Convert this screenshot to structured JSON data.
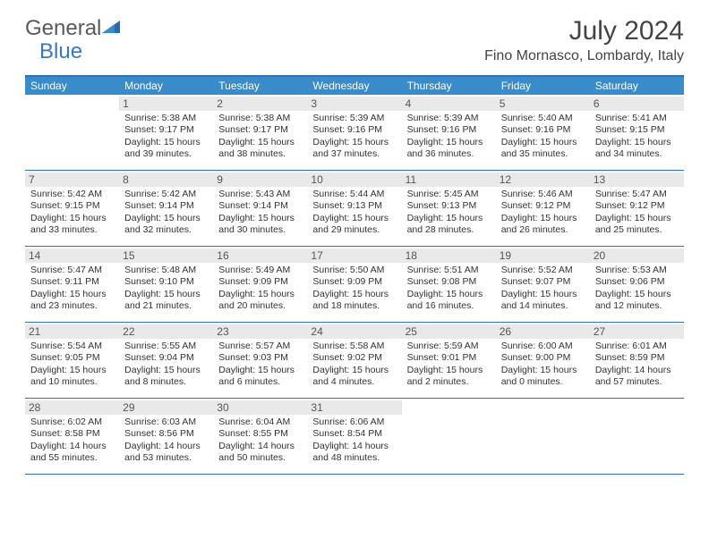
{
  "logo": {
    "text1": "General",
    "text2": "Blue"
  },
  "title": "July 2024",
  "location": "Fino Mornasco, Lombardy, Italy",
  "colors": {
    "header_bg": "#3a8bc9",
    "border": "#2f73b5",
    "datenum_bg": "#e9e9e9",
    "logo_blue": "#3a79b7"
  },
  "dayNames": [
    "Sunday",
    "Monday",
    "Tuesday",
    "Wednesday",
    "Thursday",
    "Friday",
    "Saturday"
  ],
  "weeks": [
    [
      null,
      {
        "n": "1",
        "sr": "Sunrise: 5:38 AM",
        "ss": "Sunset: 9:17 PM",
        "d1": "Daylight: 15 hours",
        "d2": "and 39 minutes."
      },
      {
        "n": "2",
        "sr": "Sunrise: 5:38 AM",
        "ss": "Sunset: 9:17 PM",
        "d1": "Daylight: 15 hours",
        "d2": "and 38 minutes."
      },
      {
        "n": "3",
        "sr": "Sunrise: 5:39 AM",
        "ss": "Sunset: 9:16 PM",
        "d1": "Daylight: 15 hours",
        "d2": "and 37 minutes."
      },
      {
        "n": "4",
        "sr": "Sunrise: 5:39 AM",
        "ss": "Sunset: 9:16 PM",
        "d1": "Daylight: 15 hours",
        "d2": "and 36 minutes."
      },
      {
        "n": "5",
        "sr": "Sunrise: 5:40 AM",
        "ss": "Sunset: 9:16 PM",
        "d1": "Daylight: 15 hours",
        "d2": "and 35 minutes."
      },
      {
        "n": "6",
        "sr": "Sunrise: 5:41 AM",
        "ss": "Sunset: 9:15 PM",
        "d1": "Daylight: 15 hours",
        "d2": "and 34 minutes."
      }
    ],
    [
      {
        "n": "7",
        "sr": "Sunrise: 5:42 AM",
        "ss": "Sunset: 9:15 PM",
        "d1": "Daylight: 15 hours",
        "d2": "and 33 minutes."
      },
      {
        "n": "8",
        "sr": "Sunrise: 5:42 AM",
        "ss": "Sunset: 9:14 PM",
        "d1": "Daylight: 15 hours",
        "d2": "and 32 minutes."
      },
      {
        "n": "9",
        "sr": "Sunrise: 5:43 AM",
        "ss": "Sunset: 9:14 PM",
        "d1": "Daylight: 15 hours",
        "d2": "and 30 minutes."
      },
      {
        "n": "10",
        "sr": "Sunrise: 5:44 AM",
        "ss": "Sunset: 9:13 PM",
        "d1": "Daylight: 15 hours",
        "d2": "and 29 minutes."
      },
      {
        "n": "11",
        "sr": "Sunrise: 5:45 AM",
        "ss": "Sunset: 9:13 PM",
        "d1": "Daylight: 15 hours",
        "d2": "and 28 minutes."
      },
      {
        "n": "12",
        "sr": "Sunrise: 5:46 AM",
        "ss": "Sunset: 9:12 PM",
        "d1": "Daylight: 15 hours",
        "d2": "and 26 minutes."
      },
      {
        "n": "13",
        "sr": "Sunrise: 5:47 AM",
        "ss": "Sunset: 9:12 PM",
        "d1": "Daylight: 15 hours",
        "d2": "and 25 minutes."
      }
    ],
    [
      {
        "n": "14",
        "sr": "Sunrise: 5:47 AM",
        "ss": "Sunset: 9:11 PM",
        "d1": "Daylight: 15 hours",
        "d2": "and 23 minutes."
      },
      {
        "n": "15",
        "sr": "Sunrise: 5:48 AM",
        "ss": "Sunset: 9:10 PM",
        "d1": "Daylight: 15 hours",
        "d2": "and 21 minutes."
      },
      {
        "n": "16",
        "sr": "Sunrise: 5:49 AM",
        "ss": "Sunset: 9:09 PM",
        "d1": "Daylight: 15 hours",
        "d2": "and 20 minutes."
      },
      {
        "n": "17",
        "sr": "Sunrise: 5:50 AM",
        "ss": "Sunset: 9:09 PM",
        "d1": "Daylight: 15 hours",
        "d2": "and 18 minutes."
      },
      {
        "n": "18",
        "sr": "Sunrise: 5:51 AM",
        "ss": "Sunset: 9:08 PM",
        "d1": "Daylight: 15 hours",
        "d2": "and 16 minutes."
      },
      {
        "n": "19",
        "sr": "Sunrise: 5:52 AM",
        "ss": "Sunset: 9:07 PM",
        "d1": "Daylight: 15 hours",
        "d2": "and 14 minutes."
      },
      {
        "n": "20",
        "sr": "Sunrise: 5:53 AM",
        "ss": "Sunset: 9:06 PM",
        "d1": "Daylight: 15 hours",
        "d2": "and 12 minutes."
      }
    ],
    [
      {
        "n": "21",
        "sr": "Sunrise: 5:54 AM",
        "ss": "Sunset: 9:05 PM",
        "d1": "Daylight: 15 hours",
        "d2": "and 10 minutes."
      },
      {
        "n": "22",
        "sr": "Sunrise: 5:55 AM",
        "ss": "Sunset: 9:04 PM",
        "d1": "Daylight: 15 hours",
        "d2": "and 8 minutes."
      },
      {
        "n": "23",
        "sr": "Sunrise: 5:57 AM",
        "ss": "Sunset: 9:03 PM",
        "d1": "Daylight: 15 hours",
        "d2": "and 6 minutes."
      },
      {
        "n": "24",
        "sr": "Sunrise: 5:58 AM",
        "ss": "Sunset: 9:02 PM",
        "d1": "Daylight: 15 hours",
        "d2": "and 4 minutes."
      },
      {
        "n": "25",
        "sr": "Sunrise: 5:59 AM",
        "ss": "Sunset: 9:01 PM",
        "d1": "Daylight: 15 hours",
        "d2": "and 2 minutes."
      },
      {
        "n": "26",
        "sr": "Sunrise: 6:00 AM",
        "ss": "Sunset: 9:00 PM",
        "d1": "Daylight: 15 hours",
        "d2": "and 0 minutes."
      },
      {
        "n": "27",
        "sr": "Sunrise: 6:01 AM",
        "ss": "Sunset: 8:59 PM",
        "d1": "Daylight: 14 hours",
        "d2": "and 57 minutes."
      }
    ],
    [
      {
        "n": "28",
        "sr": "Sunrise: 6:02 AM",
        "ss": "Sunset: 8:58 PM",
        "d1": "Daylight: 14 hours",
        "d2": "and 55 minutes."
      },
      {
        "n": "29",
        "sr": "Sunrise: 6:03 AM",
        "ss": "Sunset: 8:56 PM",
        "d1": "Daylight: 14 hours",
        "d2": "and 53 minutes."
      },
      {
        "n": "30",
        "sr": "Sunrise: 6:04 AM",
        "ss": "Sunset: 8:55 PM",
        "d1": "Daylight: 14 hours",
        "d2": "and 50 minutes."
      },
      {
        "n": "31",
        "sr": "Sunrise: 6:06 AM",
        "ss": "Sunset: 8:54 PM",
        "d1": "Daylight: 14 hours",
        "d2": "and 48 minutes."
      },
      null,
      null,
      null
    ]
  ]
}
